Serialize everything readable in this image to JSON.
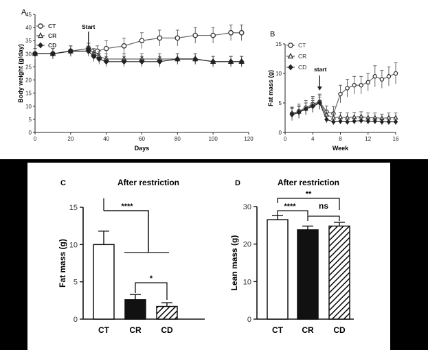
{
  "chart_data": [
    {
      "panel_letter": "A",
      "type": "line",
      "xlabel": "Days",
      "ylabel": "Body weight (g/day)",
      "xlim": [
        0,
        120
      ],
      "ylim": [
        0,
        45
      ],
      "xticks": [
        0,
        20,
        40,
        60,
        80,
        100,
        120
      ],
      "yticks": [
        0,
        5,
        10,
        15,
        20,
        25,
        30,
        35,
        40,
        45
      ],
      "annotation": "Start",
      "annotation_x": 30,
      "legend": [
        "CT",
        "CR",
        "CD"
      ],
      "legend_placement": "top-left",
      "series": [
        {
          "name": "CT",
          "marker": "circle-open",
          "x": [
            0,
            10,
            20,
            30,
            35,
            40,
            50,
            60,
            70,
            80,
            90,
            100,
            110,
            116
          ],
          "y": [
            30,
            30,
            31,
            32,
            31,
            32,
            33,
            35,
            36,
            36,
            37,
            37,
            38,
            38
          ],
          "err": [
            2,
            2,
            2,
            2,
            2,
            3,
            3,
            3,
            3,
            3,
            3,
            3,
            3,
            3
          ]
        },
        {
          "name": "CR",
          "marker": "triangle-open",
          "x": [
            0,
            10,
            20,
            30,
            33,
            36,
            40,
            50,
            60,
            70,
            80,
            90,
            100,
            110,
            116
          ],
          "y": [
            30,
            30,
            31,
            32,
            30,
            29,
            28,
            28,
            28,
            28,
            28,
            28,
            27,
            27,
            27
          ],
          "err": [
            2,
            2,
            2,
            2,
            2,
            2,
            2,
            2,
            2,
            2,
            2,
            2,
            2,
            2,
            2
          ]
        },
        {
          "name": "CD",
          "marker": "diamond-filled",
          "x": [
            0,
            10,
            20,
            30,
            33,
            36,
            40,
            50,
            60,
            70,
            80,
            90,
            100,
            110,
            116
          ],
          "y": [
            30,
            30,
            31,
            31,
            29,
            28,
            27,
            27,
            27,
            27,
            28,
            28,
            27,
            27,
            27
          ],
          "err": [
            2,
            2,
            2,
            2,
            2,
            2,
            2,
            2,
            2,
            2,
            2,
            2,
            2,
            2,
            2
          ]
        }
      ]
    },
    {
      "panel_letter": "B",
      "type": "line",
      "xlabel": "Week",
      "ylabel": "Fat mass (g)",
      "xlim": [
        0,
        16
      ],
      "ylim": [
        0,
        15
      ],
      "xticks": [
        0,
        4,
        8,
        12,
        16
      ],
      "yticks": [
        0,
        5,
        10,
        15
      ],
      "annotation": "start",
      "annotation_x": 5,
      "legend": [
        "CT",
        "CR",
        "CD"
      ],
      "legend_placement": "top-left",
      "series": [
        {
          "name": "CT",
          "marker": "circle-open",
          "x": [
            1,
            2,
            3,
            4,
            5,
            6,
            7,
            8,
            9,
            10,
            11,
            12,
            13,
            14,
            15,
            16
          ],
          "y": [
            3.2,
            3.6,
            4.2,
            4.8,
            5.2,
            3.5,
            3.2,
            6.5,
            7.5,
            8,
            8,
            8.5,
            9.5,
            9,
            9.5,
            10
          ],
          "err": [
            1,
            1.2,
            1.2,
            1.3,
            1.3,
            1,
            1.2,
            1.5,
            1.5,
            1.5,
            1.5,
            1.5,
            1.8,
            1.5,
            1.6,
            1.8
          ]
        },
        {
          "name": "CR",
          "marker": "triangle-open",
          "x": [
            1,
            2,
            3,
            4,
            5,
            6,
            7,
            8,
            9,
            10,
            11,
            12,
            13,
            14,
            15,
            16
          ],
          "y": [
            3.3,
            3.5,
            4,
            4.6,
            5.1,
            3,
            2.5,
            2.6,
            2.5,
            2.6,
            2.7,
            2.5,
            2.5,
            2.4,
            2.5,
            2.5
          ],
          "err": [
            1,
            1,
            1,
            1.2,
            1.2,
            0.8,
            0.8,
            0.8,
            0.8,
            0.8,
            0.8,
            0.8,
            0.8,
            0.7,
            0.8,
            0.8
          ]
        },
        {
          "name": "CD",
          "marker": "diamond-filled",
          "x": [
            1,
            2,
            3,
            4,
            5,
            6,
            7,
            8,
            9,
            10,
            11,
            12,
            13,
            14,
            15,
            16
          ],
          "y": [
            3,
            3.4,
            4,
            4.4,
            5,
            2.2,
            1.8,
            1.9,
            1.8,
            1.9,
            2,
            1.9,
            1.9,
            1.8,
            1.8,
            1.8
          ],
          "err": [
            1,
            1,
            1,
            1,
            1,
            0.6,
            0.5,
            0.5,
            0.5,
            0.5,
            0.5,
            0.5,
            0.5,
            0.5,
            0.5,
            0.5
          ]
        }
      ]
    },
    {
      "panel_letter": "C",
      "type": "bar",
      "title": "After restriction",
      "ylabel": "Fat mass (g)",
      "categories": [
        "CT",
        "CR",
        "CD"
      ],
      "values": [
        10,
        2.6,
        1.7
      ],
      "errors": [
        1.8,
        0.7,
        0.5
      ],
      "fills": [
        "white",
        "black",
        "hatch"
      ],
      "ylim": [
        0,
        15
      ],
      "yticks": [
        0,
        5,
        10,
        15
      ],
      "significance": [
        {
          "label": "****",
          "from": "CT",
          "to": "CR/CD"
        },
        {
          "label": "*",
          "from": "CR",
          "to": "CD"
        }
      ]
    },
    {
      "panel_letter": "D",
      "type": "bar",
      "title": "After restriction",
      "ylabel": "Lean mass (g)",
      "categories": [
        "CT",
        "CR",
        "CD"
      ],
      "values": [
        26.5,
        23.8,
        24.8
      ],
      "errors": [
        1.1,
        1.0,
        1.0
      ],
      "fills": [
        "white",
        "black",
        "hatch"
      ],
      "ylim": [
        0,
        30
      ],
      "yticks": [
        0,
        10,
        20,
        30
      ],
      "significance": [
        {
          "label": "****",
          "from": "CT",
          "to": "CR"
        },
        {
          "label": "ns",
          "from": "CR",
          "to": "CD"
        },
        {
          "label": "**",
          "from": "CT",
          "to": "CD"
        }
      ]
    }
  ]
}
